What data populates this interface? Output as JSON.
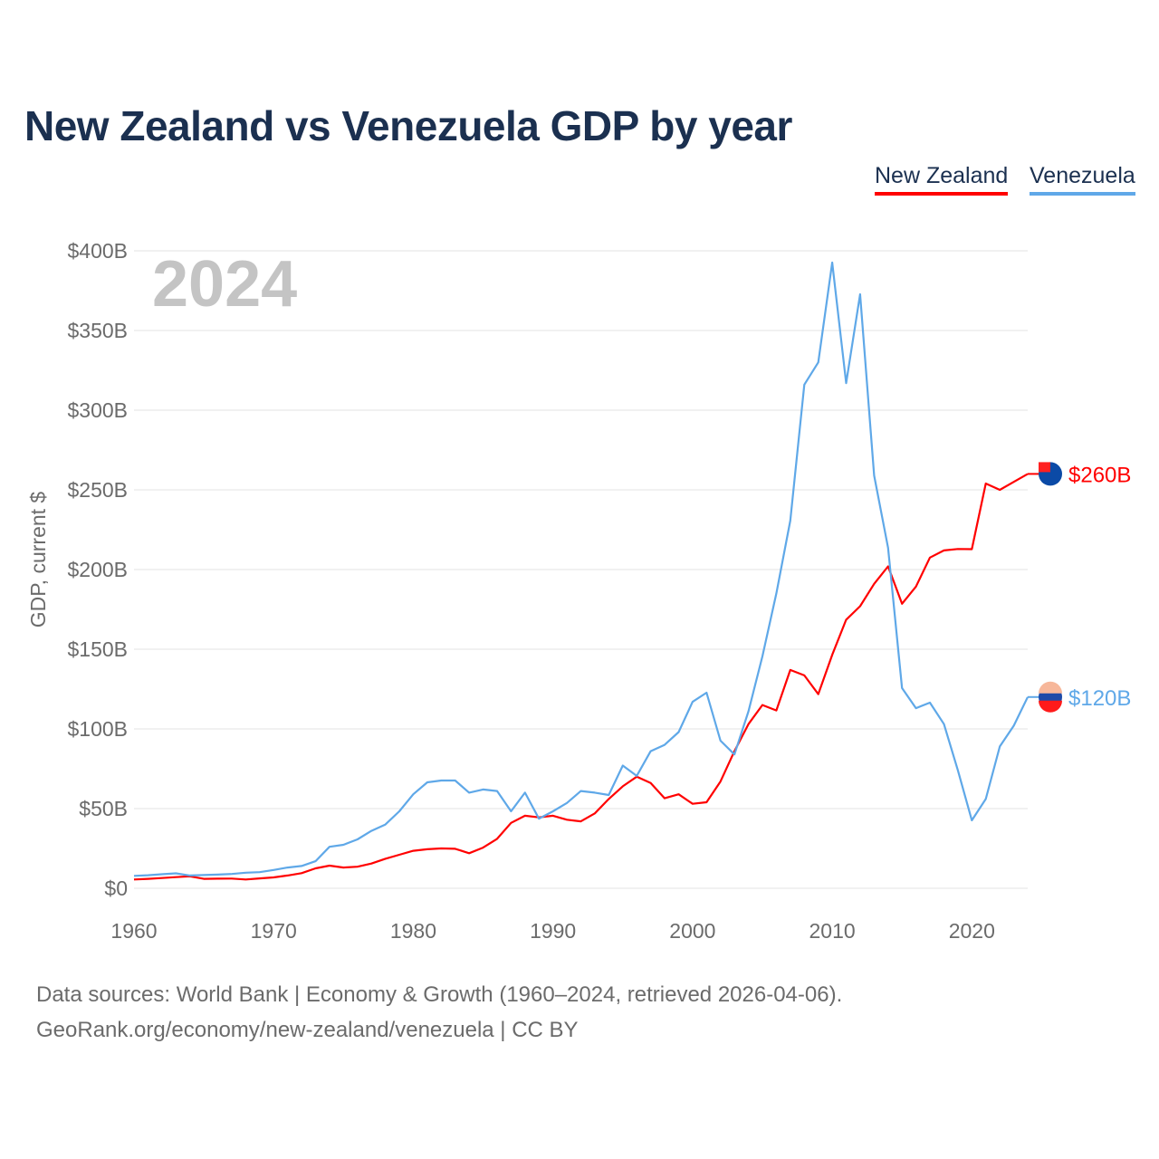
{
  "chart_data": {
    "type": "line",
    "title": "New Zealand vs Venezuela GDP by year",
    "xlabel": "",
    "ylabel": "GDP, current $",
    "xlim": [
      1960,
      2024
    ],
    "ylim": [
      0,
      400
    ],
    "yticks": [
      0,
      50,
      100,
      150,
      200,
      250,
      300,
      350,
      400
    ],
    "ytick_labels": [
      "$0",
      "$50B",
      "$100B",
      "$150B",
      "$200B",
      "$250B",
      "$300B",
      "$350B",
      "$400B"
    ],
    "xticks": [
      1960,
      1970,
      1980,
      1990,
      2000,
      2010,
      2020
    ],
    "xtick_labels": [
      "1960",
      "1970",
      "1980",
      "1990",
      "2000",
      "2010",
      "2020"
    ],
    "grid": true,
    "legend_position": "top-right",
    "year_watermark": "2024",
    "x": [
      1960,
      1961,
      1962,
      1963,
      1964,
      1965,
      1966,
      1967,
      1968,
      1969,
      1970,
      1971,
      1972,
      1973,
      1974,
      1975,
      1976,
      1977,
      1978,
      1979,
      1980,
      1981,
      1982,
      1983,
      1984,
      1985,
      1986,
      1987,
      1988,
      1989,
      1990,
      1991,
      1992,
      1993,
      1994,
      1995,
      1996,
      1997,
      1998,
      1999,
      2000,
      2001,
      2002,
      2003,
      2004,
      2005,
      2006,
      2007,
      2008,
      2009,
      2010,
      2011,
      2012,
      2013,
      2014,
      2015,
      2016,
      2017,
      2018,
      2019,
      2020,
      2021,
      2022,
      2023,
      2024
    ],
    "series": [
      {
        "name": "New Zealand",
        "color": "#ff0000",
        "end_label": "$260B",
        "values": [
          5.5,
          5.9,
          6.4,
          7.0,
          7.5,
          5.9,
          6.0,
          6.1,
          5.5,
          6.2,
          6.8,
          8.0,
          9.5,
          12.5,
          14.2,
          13.0,
          13.5,
          15.5,
          18.5,
          21.0,
          23.5,
          24.5,
          25.0,
          24.8,
          22.0,
          25.5,
          31.0,
          41.0,
          45.5,
          44.5,
          45.5,
          43.0,
          42.0,
          47.0,
          56.0,
          64.0,
          70.0,
          66.0,
          56.5,
          59.0,
          53.0,
          54.0,
          67.0,
          86.0,
          103.0,
          115.0,
          111.6,
          137.0,
          133.6,
          121.8,
          146.5,
          168.5,
          177.0,
          191.0,
          202.0,
          178.5,
          189.3,
          207.5,
          212.0,
          212.9,
          212.8,
          254.0,
          250.0,
          255.0,
          260.0
        ]
      },
      {
        "name": "Venezuela",
        "color": "#5fa8e8",
        "end_label": "$120B",
        "values": [
          7.8,
          8.2,
          8.8,
          9.4,
          8.0,
          8.3,
          8.6,
          9.0,
          9.8,
          10.1,
          11.5,
          13.0,
          14.0,
          17.0,
          26.0,
          27.3,
          30.7,
          36.0,
          40.0,
          48.3,
          59.0,
          66.5,
          67.6,
          67.6,
          60.0,
          62.0,
          61.0,
          48.3,
          60.0,
          43.7,
          48.3,
          53.5,
          61.0,
          60.0,
          58.5,
          77.0,
          70.5,
          86.0,
          90.0,
          98.0,
          117.0,
          122.7,
          92.6,
          84.0,
          111.0,
          145.5,
          185.0,
          230.7,
          316.0,
          330.0,
          392.6,
          317.0,
          372.7,
          259.0,
          213.6,
          125.6,
          113.0,
          116.5,
          103.0,
          74.0,
          42.6,
          56.0,
          89.0,
          102.0,
          120.0
        ]
      }
    ]
  },
  "source_line1": "Data sources: World Bank | Economy & Growth (1960–2024, retrieved 2026-04-06).",
  "source_line2": "GeoRank.org/economy/new-zealand/venezuela | CC BY"
}
